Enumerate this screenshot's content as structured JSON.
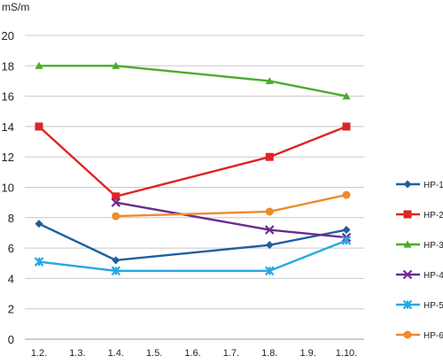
{
  "chart_data": {
    "type": "line",
    "title": "",
    "unit_label": "mS/m",
    "xlabel": "",
    "ylabel": "",
    "x_categories": [
      "1.2.",
      "1.3.",
      "1.4.",
      "1.5.",
      "1.6.",
      "1.7.",
      "1.8.",
      "1.9.",
      "1.10."
    ],
    "ylim": [
      0,
      20
    ],
    "yticks": [
      0,
      2,
      4,
      6,
      8,
      10,
      12,
      14,
      16,
      18,
      20
    ],
    "grid": "horizontal",
    "legend_placement": "right",
    "series": [
      {
        "name": "HP-1",
        "color": "#1f5fa0",
        "marker": "diamond",
        "points": [
          {
            "x": "1.2.",
            "y": 7.6
          },
          {
            "x": "1.4.",
            "y": 5.2
          },
          {
            "x": "1.8.",
            "y": 6.2
          },
          {
            "x": "1.10.",
            "y": 7.2
          }
        ]
      },
      {
        "name": "HP-2",
        "color": "#e02424",
        "marker": "square",
        "points": [
          {
            "x": "1.2.",
            "y": 14.0
          },
          {
            "x": "1.4.",
            "y": 9.4
          },
          {
            "x": "1.8.",
            "y": 12.0
          },
          {
            "x": "1.10.",
            "y": 14.0
          }
        ]
      },
      {
        "name": "HP-3",
        "color": "#4aac2c",
        "marker": "triangle",
        "points": [
          {
            "x": "1.2.",
            "y": 18.0
          },
          {
            "x": "1.4.",
            "y": 18.0
          },
          {
            "x": "1.8.",
            "y": 17.0
          },
          {
            "x": "1.10.",
            "y": 16.0
          }
        ]
      },
      {
        "name": "HP-4",
        "color": "#6a2c91",
        "marker": "x",
        "points": [
          {
            "x": "1.4.",
            "y": 9.0
          },
          {
            "x": "1.8.",
            "y": 7.2
          },
          {
            "x": "1.10.",
            "y": 6.7
          }
        ]
      },
      {
        "name": "HP-5",
        "color": "#27a9e1",
        "marker": "star",
        "points": [
          {
            "x": "1.2.",
            "y": 5.1
          },
          {
            "x": "1.4.",
            "y": 4.5
          },
          {
            "x": "1.8.",
            "y": 4.5
          },
          {
            "x": "1.10.",
            "y": 6.5
          }
        ]
      },
      {
        "name": "HP-6",
        "color": "#f08a2a",
        "marker": "circle",
        "points": [
          {
            "x": "1.4.",
            "y": 8.1
          },
          {
            "x": "1.8.",
            "y": 8.4
          },
          {
            "x": "1.10.",
            "y": 9.5
          }
        ]
      }
    ]
  }
}
